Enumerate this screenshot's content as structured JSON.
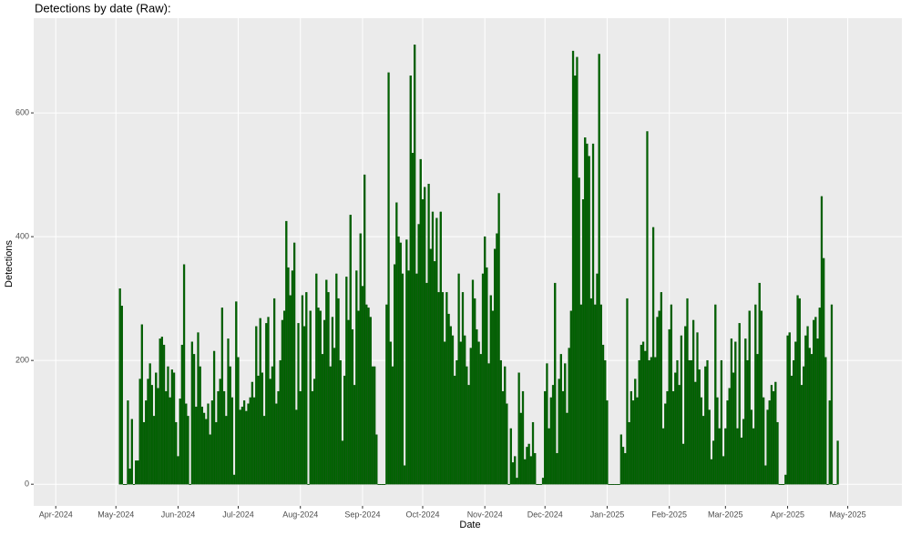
{
  "chart_data": {
    "type": "bar",
    "title": "Detections by date (Raw):",
    "x_label": "Date",
    "y_label": "Detections",
    "color": "#006400",
    "grid": true,
    "xlim": [
      -41,
      392
    ],
    "xticks": [
      {
        "value": -30,
        "label": "Apr-2024"
      },
      {
        "value": 0,
        "label": "May-2024"
      },
      {
        "value": 31,
        "label": "Jun-2024"
      },
      {
        "value": 61,
        "label": "Jul-2024"
      },
      {
        "value": 92,
        "label": "Aug-2024"
      },
      {
        "value": 123,
        "label": "Sep-2024"
      },
      {
        "value": 153,
        "label": "Oct-2024"
      },
      {
        "value": 184,
        "label": "Nov-2024"
      },
      {
        "value": 214,
        "label": "Dec-2024"
      },
      {
        "value": 245,
        "label": "Jan-2025"
      },
      {
        "value": 276,
        "label": "Feb-2025"
      },
      {
        "value": 304,
        "label": "Mar-2025"
      },
      {
        "value": 335,
        "label": "Apr-2025"
      },
      {
        "value": 365,
        "label": "May-2025"
      }
    ],
    "ylim": [
      -35,
      753
    ],
    "yticks": [
      0,
      200,
      400,
      600
    ],
    "values": [
      null,
      null,
      316,
      288,
      0,
      0,
      135,
      25,
      105,
      0,
      38,
      38,
      170,
      258,
      100,
      135,
      170,
      195,
      160,
      110,
      180,
      155,
      235,
      238,
      225,
      150,
      190,
      140,
      185,
      180,
      100,
      45,
      138,
      225,
      355,
      130,
      110,
      0,
      230,
      210,
      125,
      245,
      190,
      125,
      115,
      105,
      130,
      80,
      135,
      215,
      100,
      150,
      170,
      285,
      150,
      110,
      235,
      190,
      140,
      15,
      295,
      205,
      120,
      125,
      135,
      118,
      130,
      140,
      165,
      140,
      255,
      175,
      268,
      180,
      110,
      260,
      270,
      170,
      190,
      300,
      130,
      150,
      200,
      265,
      280,
      425,
      350,
      305,
      345,
      390,
      120,
      260,
      150,
      305,
      255,
      310,
      0,
      280,
      150,
      170,
      340,
      285,
      280,
      210,
      265,
      330,
      310,
      190,
      270,
      220,
      340,
      300,
      200,
      70,
      175,
      335,
      265,
      435,
      250,
      160,
      345,
      280,
      405,
      320,
      500,
      290,
      285,
      270,
      190,
      190,
      80,
      0,
      0,
      0,
      0,
      290,
      665,
      230,
      190,
      355,
      455,
      400,
      390,
      340,
      30,
      395,
      345,
      660,
      535,
      710,
      340,
      420,
      525,
      460,
      480,
      325,
      485,
      380,
      440,
      360,
      430,
      310,
      440,
      310,
      230,
      310,
      275,
      255,
      240,
      175,
      200,
      340,
      230,
      310,
      240,
      190,
      160,
      220,
      330,
      300,
      250,
      230,
      210,
      340,
      400,
      350,
      195,
      305,
      280,
      380,
      405,
      470,
      200,
      150,
      190,
      130,
      0,
      90,
      35,
      45,
      10,
      180,
      115,
      150,
      40,
      60,
      65,
      45,
      100,
      50,
      0,
      0,
      0,
      10,
      150,
      195,
      90,
      140,
      160,
      325,
      50,
      170,
      210,
      150,
      195,
      115,
      220,
      280,
      700,
      660,
      690,
      495,
      290,
      460,
      560,
      550,
      530,
      300,
      550,
      290,
      340,
      695,
      290,
      225,
      200,
      135,
      0,
      0,
      0,
      0,
      0,
      0,
      80,
      60,
      50,
      300,
      100,
      150,
      135,
      170,
      140,
      200,
      225,
      230,
      215,
      570,
      200,
      205,
      415,
      205,
      270,
      280,
      310,
      90,
      130,
      150,
      250,
      290,
      150,
      180,
      200,
      160,
      240,
      65,
      255,
      300,
      200,
      200,
      265,
      165,
      245,
      185,
      140,
      110,
      190,
      200,
      120,
      40,
      70,
      290,
      140,
      90,
      200,
      45,
      90,
      135,
      155,
      235,
      180,
      230,
      90,
      260,
      75,
      105,
      235,
      200,
      280,
      120,
      90,
      290,
      210,
      325,
      280,
      140,
      30,
      120,
      135,
      160,
      150,
      165,
      100,
      0,
      0,
      0,
      15,
      240,
      245,
      175,
      200,
      230,
      305,
      300,
      160,
      190,
      240,
      255,
      220,
      210,
      265,
      270,
      235,
      285,
      465,
      365,
      205,
      0,
      135,
      290,
      0,
      0,
      70,
      null,
      null,
      null,
      null
    ]
  }
}
